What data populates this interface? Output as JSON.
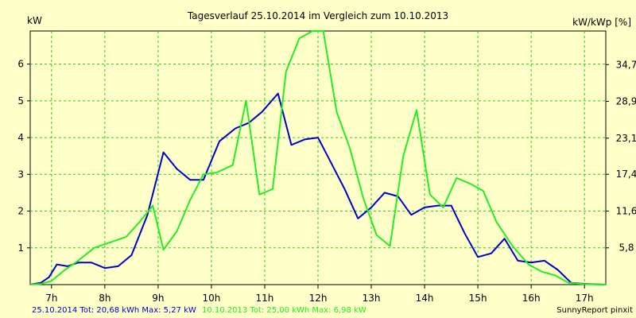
{
  "chart_data": {
    "type": "line",
    "title": "Tagesverlauf 25.10.2014 im Vergleich zum 10.10.2013",
    "ylabel_left": "kW",
    "ylabel_right": "kW/kWp [%]",
    "x_tick_labels": [
      "7h",
      "8h",
      "9h",
      "10h",
      "11h",
      "12h",
      "13h",
      "14h",
      "15h",
      "16h",
      "17h"
    ],
    "x_ticks": [
      7,
      8,
      9,
      10,
      11,
      12,
      13,
      14,
      15,
      16,
      17
    ],
    "xlim": [
      6.6,
      17.4
    ],
    "ylim": [
      0,
      6.9
    ],
    "y_ticks": [
      1,
      2,
      3,
      4,
      5,
      6
    ],
    "y_tick_labels": [
      "1",
      "2",
      "3",
      "4",
      "5",
      "6"
    ],
    "y2_ticks": [
      5.8,
      11.6,
      17.4,
      23.1,
      28.9,
      34.7
    ],
    "y2_tick_labels": [
      "5,8",
      "11,6",
      "17,4",
      "23,1",
      "28,9",
      "34,7"
    ],
    "y2lim": [
      0,
      40
    ],
    "grid": true,
    "series": [
      {
        "name": "25.10.2014",
        "color": "#0000cc",
        "points": [
          [
            6.6,
            0.0
          ],
          [
            6.8,
            0.05
          ],
          [
            6.95,
            0.2
          ],
          [
            7.1,
            0.55
          ],
          [
            7.3,
            0.5
          ],
          [
            7.5,
            0.6
          ],
          [
            7.75,
            0.6
          ],
          [
            8.0,
            0.45
          ],
          [
            8.25,
            0.5
          ],
          [
            8.5,
            0.8
          ],
          [
            8.8,
            1.9
          ],
          [
            9.1,
            3.6
          ],
          [
            9.35,
            3.15
          ],
          [
            9.6,
            2.85
          ],
          [
            9.85,
            2.85
          ],
          [
            10.15,
            3.9
          ],
          [
            10.45,
            4.25
          ],
          [
            10.7,
            4.4
          ],
          [
            10.95,
            4.7
          ],
          [
            11.25,
            5.2
          ],
          [
            11.5,
            3.8
          ],
          [
            11.75,
            3.95
          ],
          [
            12.0,
            4.0
          ],
          [
            12.25,
            3.3
          ],
          [
            12.5,
            2.6
          ],
          [
            12.75,
            1.8
          ],
          [
            13.0,
            2.1
          ],
          [
            13.25,
            2.5
          ],
          [
            13.5,
            2.4
          ],
          [
            13.75,
            1.9
          ],
          [
            14.0,
            2.1
          ],
          [
            14.25,
            2.15
          ],
          [
            14.5,
            2.15
          ],
          [
            14.75,
            1.4
          ],
          [
            15.0,
            0.75
          ],
          [
            15.25,
            0.85
          ],
          [
            15.5,
            1.25
          ],
          [
            15.75,
            0.65
          ],
          [
            16.0,
            0.6
          ],
          [
            16.25,
            0.65
          ],
          [
            16.5,
            0.4
          ],
          [
            16.75,
            0.05
          ],
          [
            17.0,
            0.02
          ],
          [
            17.4,
            0.0
          ]
        ]
      },
      {
        "name": "10.10.2013",
        "color": "#22ee22",
        "points": [
          [
            6.6,
            0.0
          ],
          [
            6.8,
            0.02
          ],
          [
            7.0,
            0.1
          ],
          [
            7.25,
            0.4
          ],
          [
            7.5,
            0.65
          ],
          [
            7.8,
            1.0
          ],
          [
            8.1,
            1.15
          ],
          [
            8.4,
            1.3
          ],
          [
            8.65,
            1.7
          ],
          [
            8.9,
            2.15
          ],
          [
            9.1,
            0.95
          ],
          [
            9.35,
            1.45
          ],
          [
            9.6,
            2.3
          ],
          [
            9.85,
            3.0
          ],
          [
            10.1,
            3.05
          ],
          [
            10.4,
            3.25
          ],
          [
            10.65,
            5.0
          ],
          [
            10.9,
            2.45
          ],
          [
            11.15,
            2.6
          ],
          [
            11.4,
            5.8
          ],
          [
            11.65,
            6.7
          ],
          [
            11.9,
            6.9
          ],
          [
            12.1,
            6.9
          ],
          [
            12.35,
            4.7
          ],
          [
            12.6,
            3.7
          ],
          [
            12.85,
            2.35
          ],
          [
            13.1,
            1.35
          ],
          [
            13.35,
            1.05
          ],
          [
            13.6,
            3.5
          ],
          [
            13.85,
            4.75
          ],
          [
            14.1,
            2.45
          ],
          [
            14.35,
            2.1
          ],
          [
            14.6,
            2.9
          ],
          [
            14.85,
            2.75
          ],
          [
            15.1,
            2.55
          ],
          [
            15.35,
            1.7
          ],
          [
            15.65,
            1.05
          ],
          [
            15.95,
            0.55
          ],
          [
            16.2,
            0.35
          ],
          [
            16.45,
            0.25
          ],
          [
            16.7,
            0.05
          ],
          [
            17.0,
            0.01
          ],
          [
            17.4,
            0.0
          ]
        ]
      }
    ]
  },
  "footer": {
    "series1_text": "25.10.2014 Tot: 20,68 kWh Max: 5,27 kW",
    "series2_text": "10.10.2013 Tot: 25,00 kWh Max: 6,98 kW",
    "credit": "SunnyReport pinxit"
  }
}
